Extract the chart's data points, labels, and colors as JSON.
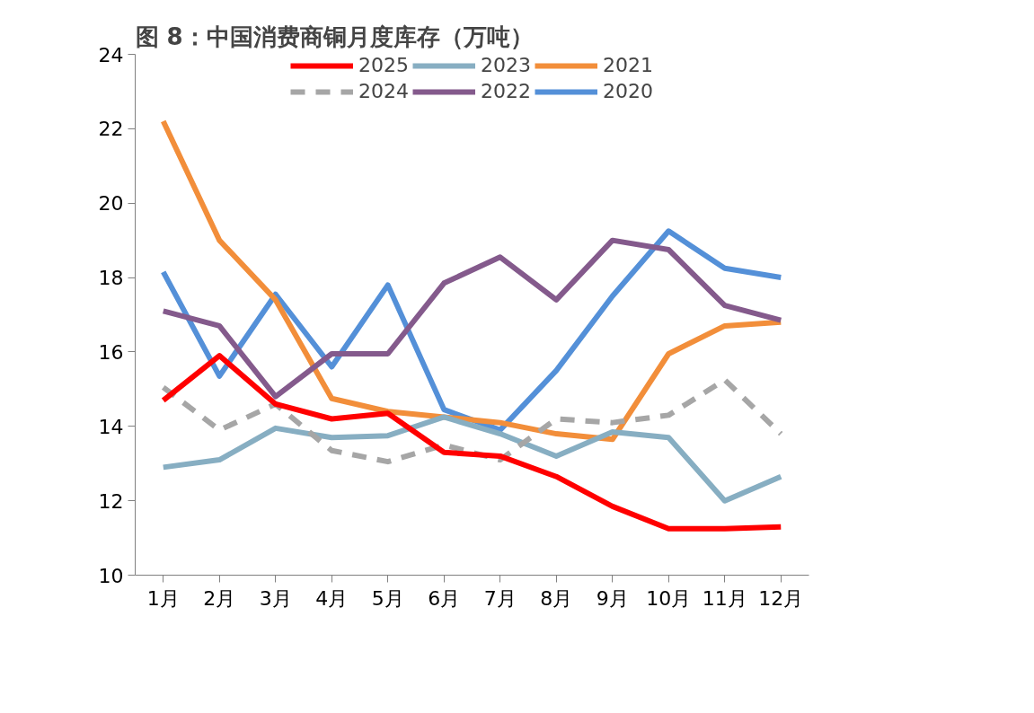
{
  "chart_data": {
    "type": "line",
    "title": "图 8：中国消费商铜月度库存（万吨）",
    "categories": [
      "1月",
      "2月",
      "3月",
      "4月",
      "5月",
      "6月",
      "7月",
      "8月",
      "9月",
      "10月",
      "11月",
      "12月"
    ],
    "ylim": [
      10,
      24
    ],
    "yticks": [
      10,
      12,
      14,
      16,
      18,
      20,
      22,
      24
    ],
    "grid": false,
    "legend": "top",
    "marker": "none",
    "series": [
      {
        "name": "2025",
        "color": "#ff0000",
        "values": [
          14.7,
          15.9,
          14.6,
          14.2,
          14.35,
          13.3,
          13.2,
          12.65,
          11.85,
          11.25,
          11.25,
          11.3
        ]
      },
      {
        "name": "2024",
        "color": "#a6a6a6",
        "line_style": "dashed",
        "values": [
          15.05,
          13.9,
          14.6,
          13.35,
          13.05,
          13.5,
          13.1,
          14.2,
          14.1,
          14.3,
          15.25,
          13.8
        ]
      },
      {
        "name": "2023",
        "color": "#87aec2",
        "values": [
          12.9,
          13.1,
          13.95,
          13.7,
          13.75,
          14.25,
          13.8,
          13.2,
          13.85,
          13.7,
          12.0,
          12.65
        ]
      },
      {
        "name": "2022",
        "color": "#845a8c",
        "values": [
          17.1,
          16.7,
          14.8,
          15.95,
          15.95,
          17.85,
          18.55,
          17.4,
          19.0,
          18.75,
          17.25,
          16.85
        ]
      },
      {
        "name": "2021",
        "color": "#f28e3a",
        "values": [
          22.2,
          19.0,
          17.4,
          14.75,
          14.4,
          14.25,
          14.1,
          13.8,
          13.65,
          15.95,
          16.7,
          16.8
        ]
      },
      {
        "name": "2020",
        "color": "#5490d8",
        "values": [
          18.15,
          15.35,
          17.55,
          15.6,
          17.8,
          14.45,
          13.9,
          15.5,
          17.5,
          19.25,
          18.25,
          18.0
        ]
      }
    ]
  }
}
